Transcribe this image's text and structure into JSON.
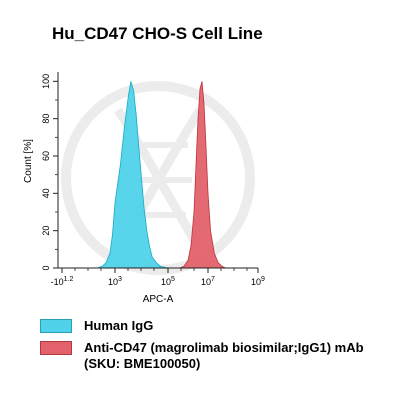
{
  "title": "Hu_CD47 CHO-S Cell Line",
  "colors": {
    "human_igg": "#4fd3ea",
    "anti_cd47": "#e2616a",
    "axis": "#222222",
    "watermark": "#ececec"
  },
  "chart_data": {
    "type": "area",
    "title": "Hu_CD47 CHO-S Cell Line",
    "xlabel": "APC-A",
    "ylabel": "Count [%]",
    "x_scale": "biexponential-log",
    "xlim": [
      -1000,
      1000000000
    ],
    "ylim": [
      0,
      105
    ],
    "x_ticks": [
      {
        "label_base": "-10",
        "label_exp": "1.2"
      },
      {
        "label_base": "10",
        "label_exp": "3"
      },
      {
        "label_base": "10",
        "label_exp": "5"
      },
      {
        "label_base": "10",
        "label_exp": "7"
      },
      {
        "label_base": "10",
        "label_exp": "9"
      }
    ],
    "y_ticks": [
      "0",
      "20",
      "40",
      "60",
      "80",
      "100"
    ],
    "legend_position": "bottom",
    "series": [
      {
        "name": "Human IgG",
        "color": "#4fd3ea",
        "x_log10": [
          1.6,
          2.0,
          2.3,
          2.6,
          2.8,
          3.0,
          3.2,
          3.35,
          3.5,
          3.6,
          3.7,
          3.8,
          3.9,
          4.0,
          4.1,
          4.2,
          4.3,
          4.4,
          4.55,
          4.7,
          4.85,
          5.0
        ],
        "values": [
          0,
          1,
          3,
          8,
          18,
          35,
          55,
          75,
          92,
          100,
          95,
          82,
          65,
          48,
          32,
          20,
          12,
          6,
          3,
          1,
          0.5,
          0
        ]
      },
      {
        "name": "Anti-CD47 (magrolimab biosimilar;IgG1) mAb (SKU: BME100050)",
        "color": "#e2616a",
        "x_log10": [
          5.6,
          5.8,
          6.0,
          6.15,
          6.3,
          6.4,
          6.5,
          6.6,
          6.7,
          6.8,
          6.9,
          7.0,
          7.1,
          7.25,
          7.4,
          7.55,
          7.7
        ],
        "values": [
          0,
          1,
          4,
          12,
          30,
          55,
          80,
          96,
          100,
          88,
          65,
          40,
          20,
          8,
          3,
          1,
          0
        ]
      }
    ]
  },
  "legend": [
    {
      "label": "Human IgG",
      "swatch_color": "#4fd3ea"
    },
    {
      "label": "Anti-CD47 (magrolimab biosimilar;IgG1) mAb (SKU: BME100050)",
      "swatch_color": "#e2616a"
    }
  ]
}
